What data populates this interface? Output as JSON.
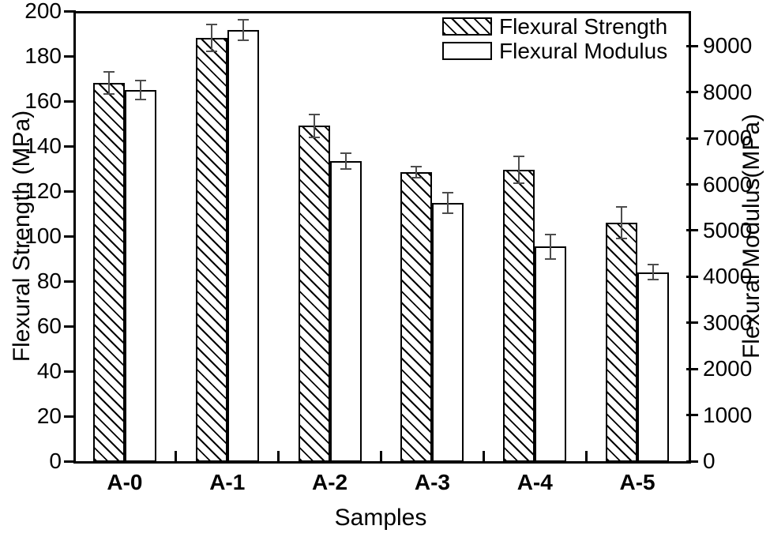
{
  "figure": {
    "background": "#ffffff",
    "frame_color": "#000000",
    "bar_fill": "#ffffff",
    "bar_border": "#000000",
    "error_bar_color": "#4d4d4d"
  },
  "chart_data": {
    "type": "bar",
    "title": "",
    "categories": [
      "A-0",
      "A-1",
      "A-2",
      "A-3",
      "A-4",
      "A-5"
    ],
    "series": [
      {
        "name": "Flexural Strength",
        "axis": "left",
        "fill": "hatched",
        "values": [
          168,
          188,
          149,
          128.5,
          129.5,
          106
        ],
        "errors": [
          5,
          6,
          5,
          2.5,
          6,
          7
        ]
      },
      {
        "name": "Flexural Modulus",
        "axis": "right",
        "fill": "open",
        "values": [
          8050,
          9350,
          6500,
          5600,
          4650,
          4100
        ],
        "errors": [
          210,
          220,
          170,
          230,
          260,
          170
        ]
      }
    ],
    "xlabel": "Samples",
    "axes": {
      "left": {
        "label": "Flexural Strength (MPa)",
        "min": 0,
        "max": 200,
        "ticks": [
          0,
          20,
          40,
          60,
          80,
          100,
          120,
          140,
          160,
          180,
          200
        ]
      },
      "right": {
        "label": "Flexural Modulus(MPa)",
        "min": 0,
        "max": 9760,
        "ticks": [
          0,
          1000,
          2000,
          3000,
          4000,
          5000,
          6000,
          7000,
          8000,
          9000
        ]
      }
    },
    "legend": {
      "position": "top-right",
      "entries": [
        "Flexural Strength",
        "Flexural Modulus"
      ]
    },
    "grid": false
  }
}
